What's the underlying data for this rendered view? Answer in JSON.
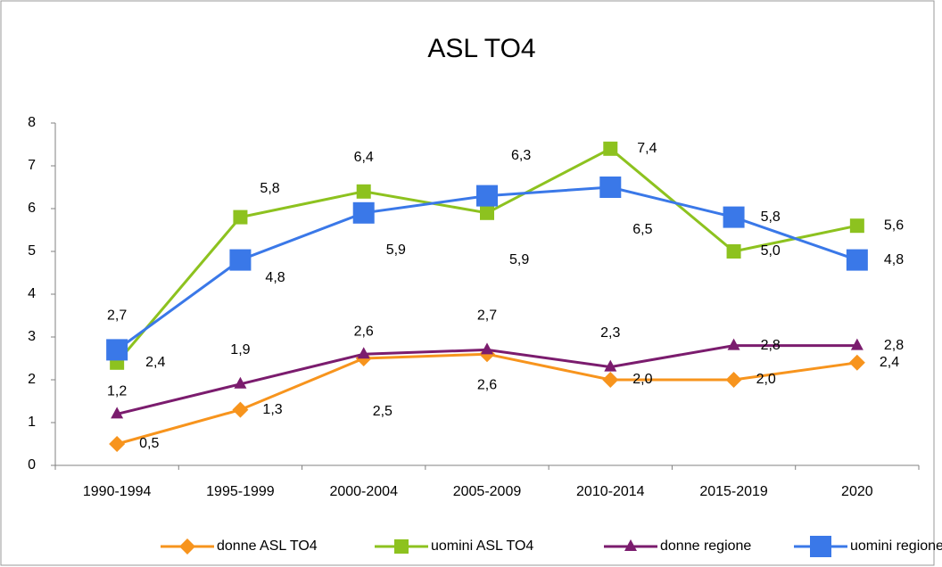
{
  "chart_data": {
    "type": "line",
    "title": "ASL TO4",
    "categories": [
      "1990-1994",
      "1995-1999",
      "2000-2004",
      "2005-2009",
      "2010-2014",
      "2015-2019",
      "2020"
    ],
    "series": [
      {
        "name": "donne ASL TO4",
        "color": "#f7941d",
        "marker": "diamond",
        "values": [
          0.5,
          1.3,
          2.5,
          2.6,
          2.0,
          2.0,
          2.4
        ],
        "value_labels": [
          "0,5",
          "1,3",
          "2,5",
          "2,6",
          "2,0",
          "2,0",
          "2,4"
        ]
      },
      {
        "name": "uomini ASL TO4",
        "color": "#8dc21f",
        "marker": "square",
        "values": [
          2.4,
          5.8,
          6.4,
          5.9,
          7.4,
          5.0,
          5.6
        ],
        "value_labels": [
          "2,4",
          "5,8",
          "6,4",
          "5,9",
          "7,4",
          "5,0",
          "5,6"
        ]
      },
      {
        "name": "donne regione",
        "color": "#7b1c6e",
        "marker": "triangle",
        "values": [
          1.2,
          1.9,
          2.6,
          2.7,
          2.3,
          2.8,
          2.8
        ],
        "value_labels": [
          "1,2",
          "1,9",
          "2,6",
          "2,7",
          "2,3",
          "2,8",
          "2,8"
        ]
      },
      {
        "name": "uomini regione",
        "color": "#3a78e8",
        "marker": "bigsquare",
        "values": [
          2.7,
          4.8,
          5.9,
          6.3,
          6.5,
          5.8,
          4.8
        ],
        "value_labels": [
          "2,7",
          "4,8",
          "5,9",
          "6,3",
          "6,5",
          "5,8",
          "4,8"
        ]
      }
    ],
    "ylim": [
      0,
      8
    ],
    "yticks": [
      0,
      1,
      2,
      3,
      4,
      5,
      6,
      7,
      8
    ],
    "grid": false,
    "legend": "bottom"
  }
}
